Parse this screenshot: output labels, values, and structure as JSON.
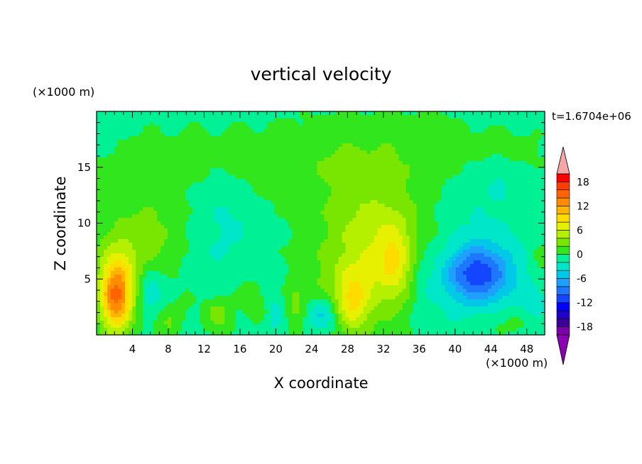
{
  "chart_data": {
    "type": "heatmap",
    "title": "vertical velocity",
    "xlabel": "X coordinate",
    "ylabel": "Z coordinate",
    "x_unit_label": "(×1000 m)",
    "y_unit_label": "(×1000 m)",
    "time_label": "t=1.6704e+06",
    "xlim": [
      0,
      50
    ],
    "ylim": [
      0,
      20
    ],
    "x_ticks": [
      4,
      8,
      12,
      16,
      20,
      24,
      28,
      32,
      36,
      40,
      44,
      48
    ],
    "y_ticks": [
      5,
      10,
      15
    ],
    "x_tick_labels": [
      "4",
      "8",
      "12",
      "16",
      "20",
      "24",
      "28",
      "32",
      "36",
      "40",
      "44",
      "48"
    ],
    "y_tick_labels": [
      "5",
      "10",
      "15"
    ],
    "colorbar": {
      "levels": [
        -20,
        -18,
        -16,
        -14,
        -12,
        -10,
        -8,
        -6,
        -4,
        -2,
        0,
        2,
        4,
        6,
        8,
        10,
        12,
        14,
        16,
        18,
        20
      ],
      "colors": [
        "#7a00a8",
        "#3c0096",
        "#1e00c8",
        "#0000ff",
        "#1446ff",
        "#1e78ff",
        "#1ea0ff",
        "#00c8e6",
        "#00e6c8",
        "#00f096",
        "#32e61e",
        "#78e600",
        "#b4f000",
        "#e6f000",
        "#ffdc00",
        "#ffb400",
        "#ff8c00",
        "#ff6400",
        "#ff3c00",
        "#ff0000"
      ],
      "extend_low_color": "#8c00b4",
      "extend_high_color": "#f4a6a6",
      "tick_values": [
        18,
        12,
        6,
        0,
        -6,
        -12,
        -18
      ],
      "tick_labels": [
        "18",
        "12",
        "6",
        "0",
        "-6",
        "-12",
        "-18"
      ]
    },
    "background_value": -0.8,
    "field_features": [
      {
        "kind": "gauss",
        "x": 14,
        "z": 15.5,
        "sx": 9,
        "sz": 2.5,
        "amp": 1.6
      },
      {
        "kind": "gauss",
        "x": 30,
        "z": 16,
        "sx": 7,
        "sz": 2.5,
        "amp": 1.5
      },
      {
        "kind": "gauss",
        "x": 46,
        "z": 16.5,
        "sx": 4,
        "sz": 1.5,
        "amp": 1.5
      },
      {
        "kind": "gauss",
        "x": 37,
        "z": 18.3,
        "sx": 3,
        "sz": 1,
        "amp": 1.3
      },
      {
        "kind": "gauss",
        "x": 30,
        "z": 11,
        "sx": 6,
        "sz": 5,
        "amp": 1.2
      },
      {
        "kind": "gauss",
        "x": 4,
        "z": 10,
        "sx": 4,
        "sz": 4,
        "amp": 1.6
      },
      {
        "kind": "gauss",
        "x": 7,
        "z": 8.5,
        "sx": 4,
        "sz": 2.5,
        "amp": 2.2
      },
      {
        "kind": "gauss",
        "x": 2.2,
        "z": 3.2,
        "sx": 1.3,
        "sz": 2.2,
        "amp": 14
      },
      {
        "kind": "gauss",
        "x": 2.5,
        "z": 6,
        "sx": 2,
        "sz": 2,
        "amp": 3
      },
      {
        "kind": "gauss",
        "x": 31,
        "z": 7,
        "sx": 4,
        "sz": 4.5,
        "amp": 5.5
      },
      {
        "kind": "gauss",
        "x": 33.2,
        "z": 6.5,
        "sx": 1.3,
        "sz": 2.5,
        "amp": 4.5
      },
      {
        "kind": "gauss",
        "x": 28.5,
        "z": 3,
        "sx": 1.4,
        "sz": 2,
        "amp": 6.5
      },
      {
        "kind": "gauss",
        "x": 24,
        "z": 2.5,
        "sx": 2,
        "sz": 2.5,
        "amp": 2
      },
      {
        "kind": "gauss",
        "x": 13.5,
        "z": 1.8,
        "sx": 1.2,
        "sz": 1.2,
        "amp": 4
      },
      {
        "kind": "gauss",
        "x": 8,
        "z": 1,
        "sx": 1,
        "sz": 1,
        "amp": 3
      },
      {
        "kind": "gauss",
        "x": 17,
        "z": 3.5,
        "sx": 1,
        "sz": 1,
        "amp": 2.5
      },
      {
        "kind": "gauss",
        "x": 18.5,
        "z": 2,
        "sx": 1,
        "sz": 1,
        "amp": 2
      },
      {
        "kind": "gauss",
        "x": 22,
        "z": 2.5,
        "sx": 1,
        "sz": 1.5,
        "amp": 2.5
      },
      {
        "kind": "gauss",
        "x": 10,
        "z": 3,
        "sx": 1,
        "sz": 1,
        "amp": 1.5
      },
      {
        "kind": "gauss",
        "x": 46,
        "z": 1,
        "sx": 3,
        "sz": 1,
        "amp": 2
      },
      {
        "kind": "gauss",
        "x": 49.5,
        "z": 6,
        "sx": 1,
        "sz": 2,
        "amp": 2
      },
      {
        "kind": "gauss",
        "x": 42.5,
        "z": 5.5,
        "sx": 2.5,
        "sz": 1.7,
        "amp": -9
      },
      {
        "kind": "gauss",
        "x": 43,
        "z": 8,
        "sx": 4,
        "sz": 4,
        "amp": -1.5
      },
      {
        "kind": "gauss",
        "x": 40,
        "z": 3,
        "sx": 6,
        "sz": 3,
        "amp": -1.2
      },
      {
        "kind": "gauss",
        "x": 25,
        "z": 1.8,
        "sx": 1.4,
        "sz": 1.2,
        "amp": -6
      },
      {
        "kind": "gauss",
        "x": 6,
        "z": 4,
        "sx": 1,
        "sz": 1.3,
        "amp": -3.5
      },
      {
        "kind": "gauss",
        "x": 12,
        "z": 8,
        "sx": 3,
        "sz": 4,
        "amp": -1.5
      },
      {
        "kind": "gauss",
        "x": 20,
        "z": 2,
        "sx": 1,
        "sz": 1.5,
        "amp": -3
      },
      {
        "kind": "gauss",
        "x": 15,
        "z": 11,
        "sx": 2,
        "sz": 3,
        "amp": -1.2
      },
      {
        "kind": "gauss",
        "x": 49,
        "z": 3,
        "sx": 1,
        "sz": 1.5,
        "amp": -2.5
      },
      {
        "kind": "gauss",
        "x": 36.5,
        "z": 5,
        "sx": 1,
        "sz": 2,
        "amp": -1.5
      },
      {
        "kind": "gauss",
        "x": 45,
        "z": 14,
        "sx": 1.5,
        "sz": 1.5,
        "amp": -1.2
      }
    ]
  }
}
